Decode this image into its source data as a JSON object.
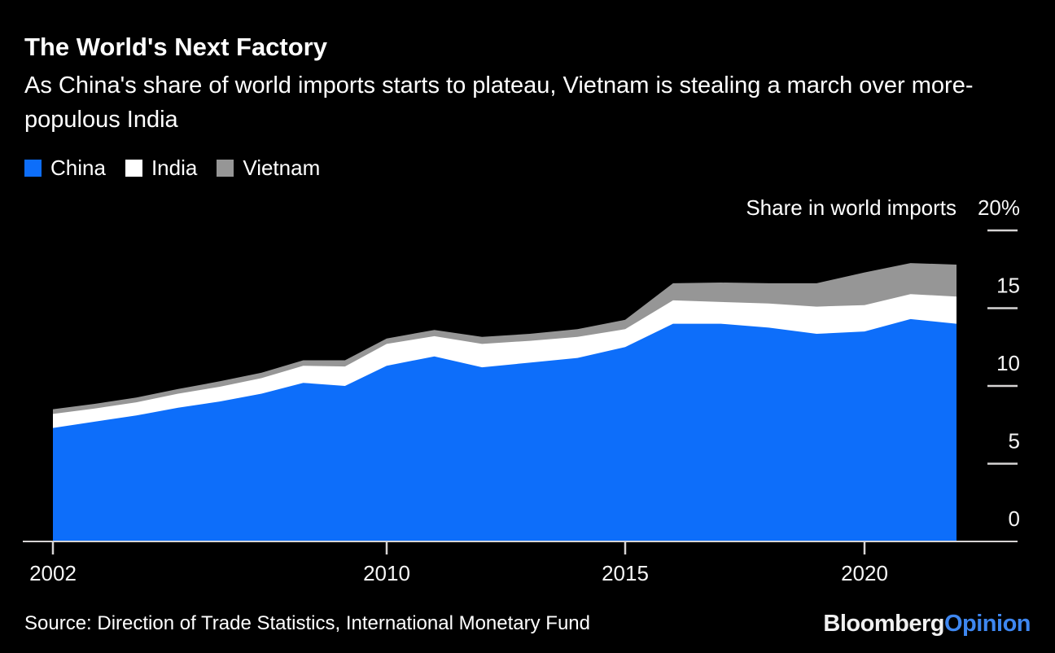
{
  "header": {
    "title": "The World's Next Factory",
    "subtitle": "As China's share of world imports starts to plateau, Vietnam is stealing a march over more-populous India"
  },
  "source": "Source: Direction of Trade Statistics, International Monetary Fund",
  "logo": {
    "bloomberg": "Bloomberg",
    "opinion": "Opinion"
  },
  "colors": {
    "background": "#000000",
    "text": "#ffffff",
    "axis": "#d6d4d4",
    "china_blue": "#0d6efa",
    "india_white": "#ffffff",
    "vietnam_gray": "#969696",
    "logo_opinion_blue": "#3e87f0"
  },
  "chart_data": {
    "type": "area",
    "stacked": true,
    "title": "Share in world imports",
    "unit": "%",
    "grid": false,
    "legend_position": "top-left",
    "x": [
      2002,
      2003,
      2004,
      2005,
      2006,
      2007,
      2008,
      2009,
      2010,
      2011,
      2012,
      2013,
      2014,
      2015,
      2016,
      2017,
      2018,
      2019,
      2020,
      2021,
      2022
    ],
    "series": [
      {
        "name": "China",
        "color": "#0d6efa",
        "values": [
          7.3,
          7.7,
          8.1,
          8.6,
          9.0,
          9.5,
          10.2,
          10.0,
          11.3,
          11.9,
          11.2,
          11.5,
          11.8,
          12.5,
          14.0,
          14.0,
          13.75,
          13.35,
          13.5,
          14.3,
          14.0
        ]
      },
      {
        "name": "India",
        "color": "#ffffff",
        "values": [
          0.9,
          0.85,
          0.85,
          0.9,
          0.95,
          1.0,
          1.1,
          1.25,
          1.4,
          1.3,
          1.5,
          1.4,
          1.35,
          1.15,
          1.5,
          1.4,
          1.55,
          1.75,
          1.7,
          1.6,
          1.75
        ]
      },
      {
        "name": "Vietnam",
        "color": "#969696",
        "values": [
          0.3,
          0.3,
          0.3,
          0.3,
          0.35,
          0.35,
          0.35,
          0.4,
          0.35,
          0.4,
          0.45,
          0.45,
          0.5,
          0.6,
          1.1,
          1.25,
          1.3,
          1.5,
          2.1,
          2.0,
          2.05
        ]
      }
    ],
    "y_axis": {
      "label": "Share in world imports",
      "position": "right",
      "range": [
        0,
        20
      ],
      "ticks": [
        20,
        15,
        10,
        5,
        0
      ],
      "tick_labels": [
        "20%",
        "15",
        "10",
        "5",
        "0"
      ]
    },
    "x_axis": {
      "tick_years": [
        2002,
        2010,
        2015,
        2020
      ],
      "tick_labels": [
        "2002",
        "2010",
        "2015",
        "2020"
      ]
    }
  }
}
